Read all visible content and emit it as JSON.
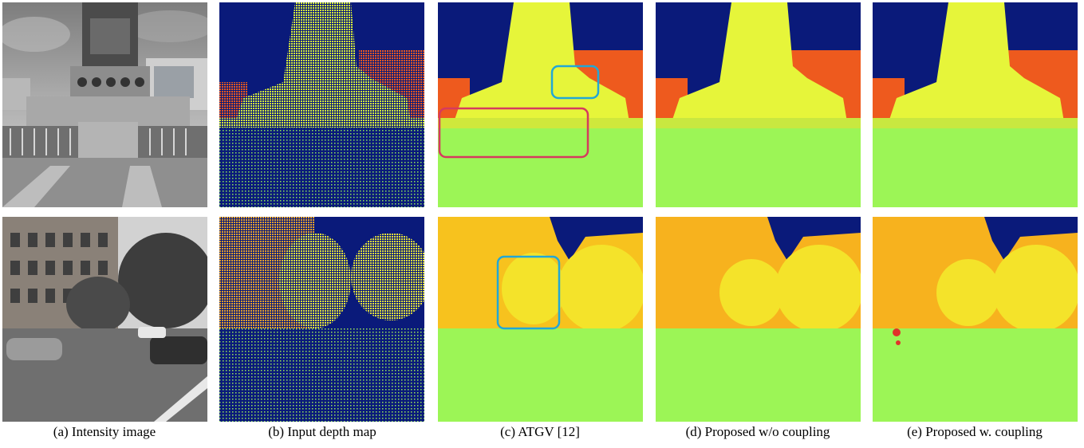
{
  "captions": {
    "a": "(a) Intensity image",
    "b": "(b) Input depth map",
    "c": "(c) ATGV [12]",
    "d": "(d) Proposed w/o coupling",
    "e": "(e) Proposed w. coupling"
  },
  "colors": {
    "sky_blue": "#0a1a7a",
    "near_green": "#9cf556",
    "statue_yellow": "#e6f53a",
    "building_orange": "#ee5a1e",
    "facade_yellow": "#f7c21e",
    "highlight_red": "#d63a5e",
    "highlight_cyan": "#22a7d6"
  },
  "grid": {
    "rows": 2,
    "columns": 5
  }
}
